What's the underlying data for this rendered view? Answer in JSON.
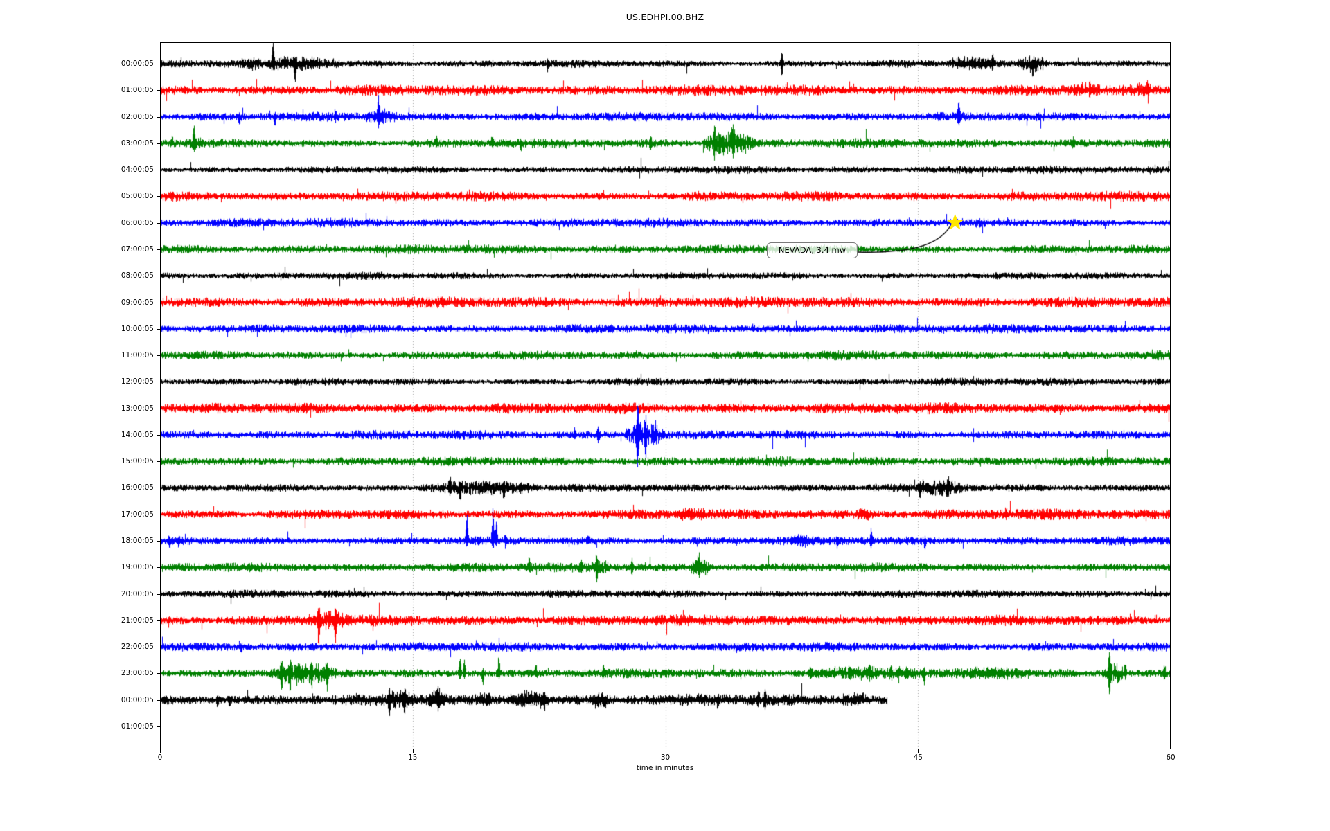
{
  "chart_data": {
    "type": "line",
    "subtype": "helicorder-seismogram",
    "title": "US.EDHPI.00.BHZ",
    "xlabel": "time in minutes",
    "xlim": [
      0,
      60
    ],
    "x_ticks": [
      0,
      15,
      30,
      45,
      60
    ],
    "grid_x_minutes": [
      15,
      30,
      45
    ],
    "grid_on": true,
    "palette": {
      "black": "#000000",
      "red": "#ff0000",
      "blue": "#0000ff",
      "green": "#008000",
      "grid": "#8a8a8a",
      "star": "#ffe600",
      "background": "#ffffff"
    },
    "color_cycle": [
      "black",
      "red",
      "blue",
      "green"
    ],
    "annotation": {
      "text": "NEVADA, 3.4 mw",
      "star_row_label": "06:00:05",
      "star_minute": 47.2,
      "box_row_label": "07:00:05",
      "box_minute_left": 36.1
    },
    "rows": [
      {
        "label": "00:00:05",
        "color": "black",
        "amp": 3.4,
        "end": 60,
        "events": [
          {
            "b": 1,
            "m": 4.7,
            "w": 1.2,
            "u": 5,
            "d": 5
          },
          {
            "m": 6.7,
            "u": 30,
            "d": 6
          },
          {
            "b": 1,
            "m": 6.2,
            "w": 4.6,
            "u": 7,
            "d": 7
          },
          {
            "m": 8.0,
            "u": 6,
            "d": 26
          },
          {
            "m": 23.0,
            "u": 4,
            "d": 8
          },
          {
            "m": 36.9,
            "u": 13,
            "d": 16
          },
          {
            "b": 1,
            "m": 46.8,
            "w": 2.8,
            "u": 9,
            "d": 5
          },
          {
            "m": 49.4,
            "u": 12,
            "d": 5
          },
          {
            "b": 1,
            "m": 50.9,
            "w": 1.8,
            "u": 9,
            "d": 10
          },
          {
            "m": 51.8,
            "u": 4,
            "d": 14
          }
        ]
      },
      {
        "label": "01:00:05",
        "color": "red",
        "amp": 4.4,
        "end": 60,
        "events": [
          {
            "b": 1,
            "m": 53.8,
            "w": 2.0,
            "u": 5,
            "d": 2
          },
          {
            "m": 55.2,
            "u": 8,
            "d": 3
          },
          {
            "b": 1,
            "m": 57.4,
            "w": 2.2,
            "u": 6,
            "d": 3
          },
          {
            "m": 58.6,
            "u": 7,
            "d": 3
          }
        ]
      },
      {
        "label": "02:00:05",
        "color": "blue",
        "amp": 3.7,
        "end": 60,
        "events": [
          {
            "m": 4.7,
            "u": 3,
            "d": 10
          },
          {
            "m": 6.8,
            "u": 4,
            "d": 11
          },
          {
            "m": 10.4,
            "u": 7,
            "d": 3
          },
          {
            "b": 1,
            "m": 12.1,
            "w": 2.0,
            "u": 8,
            "d": 6
          },
          {
            "m": 12.95,
            "u": 26,
            "d": 8
          },
          {
            "m": 47.4,
            "u": 19,
            "d": 9
          }
        ]
      },
      {
        "label": "03:00:05",
        "color": "green",
        "amp": 3.7,
        "end": 60,
        "events": [
          {
            "m": 0.7,
            "u": 8,
            "d": 3
          },
          {
            "m": 2.0,
            "u": 24,
            "d": 4
          },
          {
            "b": 1,
            "m": 1.5,
            "w": 1.2,
            "u": 5,
            "d": 8
          },
          {
            "m": 16.4,
            "u": 8,
            "d": 3
          },
          {
            "m": 19.7,
            "u": 8,
            "d": 4
          },
          {
            "m": 21.4,
            "u": 3,
            "d": 8
          },
          {
            "m": 29.1,
            "u": 8,
            "d": 8
          },
          {
            "b": 1,
            "m": 32.2,
            "w": 3.2,
            "u": 14,
            "d": 16
          },
          {
            "m": 32.9,
            "u": 20,
            "d": 14
          },
          {
            "m": 34.0,
            "u": 24,
            "d": 16
          },
          {
            "m": 54.2,
            "u": 6,
            "d": 4
          }
        ]
      },
      {
        "label": "04:00:05",
        "color": "black",
        "amp": 3.2,
        "end": 60,
        "events": []
      },
      {
        "label": "05:00:05",
        "color": "red",
        "amp": 4.4,
        "end": 60,
        "events": []
      },
      {
        "label": "06:00:05",
        "color": "blue",
        "amp": 3.7,
        "end": 60,
        "events": []
      },
      {
        "label": "07:00:05",
        "color": "green",
        "amp": 3.7,
        "end": 60,
        "events": []
      },
      {
        "label": "08:00:05",
        "color": "black",
        "amp": 3.2,
        "end": 60,
        "events": []
      },
      {
        "label": "09:00:05",
        "color": "red",
        "amp": 4.4,
        "end": 60,
        "events": []
      },
      {
        "label": "10:00:05",
        "color": "blue",
        "amp": 3.7,
        "end": 60,
        "events": []
      },
      {
        "label": "11:00:05",
        "color": "green",
        "amp": 3.7,
        "end": 60,
        "events": []
      },
      {
        "label": "12:00:05",
        "color": "black",
        "amp": 3.2,
        "end": 60,
        "events": []
      },
      {
        "label": "13:00:05",
        "color": "red",
        "amp": 4.4,
        "end": 60,
        "events": []
      },
      {
        "label": "14:00:05",
        "color": "blue",
        "amp": 3.7,
        "end": 60,
        "events": [
          {
            "m": 24.6,
            "u": 7,
            "d": 4
          },
          {
            "m": 26.0,
            "u": 10,
            "d": 12
          },
          {
            "b": 1,
            "m": 27.5,
            "w": 2.4,
            "u": 16,
            "d": 13
          },
          {
            "m": 28.35,
            "u": 42,
            "d": 40
          },
          {
            "m": 28.8,
            "u": 15,
            "d": 22
          },
          {
            "m": 29.4,
            "u": 13,
            "d": 7
          }
        ]
      },
      {
        "label": "15:00:05",
        "color": "green",
        "amp": 3.7,
        "end": 60,
        "events": []
      },
      {
        "label": "16:00:05",
        "color": "black",
        "amp": 3.3,
        "end": 60,
        "events": [
          {
            "b": 1,
            "m": 15.3,
            "w": 7.2,
            "u": 8,
            "d": 8
          },
          {
            "m": 17.2,
            "u": 10,
            "d": 6
          },
          {
            "m": 17.8,
            "u": 5,
            "d": 12
          },
          {
            "m": 20.4,
            "u": 4,
            "d": 12
          },
          {
            "b": 1,
            "m": 44.9,
            "w": 2.8,
            "u": 8,
            "d": 9
          },
          {
            "m": 45.1,
            "u": 4,
            "d": 14
          },
          {
            "m": 46.8,
            "u": 11,
            "d": 5
          }
        ]
      },
      {
        "label": "17:00:05",
        "color": "red",
        "amp": 4.4,
        "end": 60,
        "events": [
          {
            "b": 1,
            "m": 30.6,
            "w": 1.8,
            "u": 5,
            "d": 4
          },
          {
            "b": 1,
            "m": 41.2,
            "w": 1.4,
            "u": 6,
            "d": 4
          },
          {
            "m": 50.2,
            "u": 5,
            "d": 4
          }
        ]
      },
      {
        "label": "18:00:05",
        "color": "blue",
        "amp": 3.7,
        "end": 60,
        "events": [
          {
            "m": 0.55,
            "u": 3,
            "d": 9
          },
          {
            "m": 1.1,
            "u": 3,
            "d": 7
          },
          {
            "m": 18.2,
            "u": 40,
            "d": 4
          },
          {
            "m": 19.75,
            "u": 48,
            "d": 5
          },
          {
            "m": 19.95,
            "u": 28,
            "d": 4
          },
          {
            "m": 20.5,
            "u": 7,
            "d": 4
          },
          {
            "m": 25.4,
            "u": 7,
            "d": 3
          },
          {
            "b": 1,
            "m": 37.3,
            "w": 1.4,
            "u": 5,
            "d": 5
          },
          {
            "m": 40.2,
            "u": 3,
            "d": 8
          },
          {
            "m": 42.2,
            "u": 16,
            "d": 8
          },
          {
            "m": 45.4,
            "u": 3,
            "d": 9
          }
        ]
      },
      {
        "label": "19:00:05",
        "color": "green",
        "amp": 3.7,
        "end": 60,
        "events": [
          {
            "m": 21.9,
            "u": 12,
            "d": 4
          },
          {
            "m": 25.0,
            "u": 6,
            "d": 4
          },
          {
            "b": 1,
            "m": 25.5,
            "w": 1.2,
            "u": 6,
            "d": 6
          },
          {
            "m": 25.9,
            "u": 14,
            "d": 16
          },
          {
            "m": 28.0,
            "u": 12,
            "d": 10
          },
          {
            "b": 1,
            "m": 31.5,
            "w": 1.2,
            "u": 11,
            "d": 11
          },
          {
            "m": 32.0,
            "u": 14,
            "d": 10
          }
        ]
      },
      {
        "label": "20:00:05",
        "color": "black",
        "amp": 3.4,
        "end": 60,
        "events": []
      },
      {
        "label": "21:00:05",
        "color": "red",
        "amp": 4.4,
        "end": 60,
        "events": [
          {
            "b": 1,
            "m": 8.7,
            "w": 2.4,
            "u": 9,
            "d": 8
          },
          {
            "m": 9.4,
            "u": 12,
            "d": 34
          },
          {
            "m": 10.4,
            "u": 10,
            "d": 30
          }
        ]
      },
      {
        "label": "22:00:05",
        "color": "blue",
        "amp": 3.7,
        "end": 60,
        "events": [
          {
            "m": 4.8,
            "u": 3,
            "d": 7
          }
        ]
      },
      {
        "label": "23:00:05",
        "color": "green",
        "amp": 3.7,
        "end": 60,
        "events": [
          {
            "b": 1,
            "m": 6.5,
            "w": 4.0,
            "u": 11,
            "d": 13
          },
          {
            "m": 7.2,
            "u": 14,
            "d": 20
          },
          {
            "m": 7.7,
            "u": 12,
            "d": 24
          },
          {
            "m": 9.0,
            "u": 10,
            "d": 10
          },
          {
            "m": 9.9,
            "u": 8,
            "d": 16
          },
          {
            "m": 17.8,
            "u": 22,
            "d": 6
          },
          {
            "m": 18.05,
            "u": 18,
            "d": 6
          },
          {
            "m": 19.15,
            "u": 4,
            "d": 18
          },
          {
            "m": 20.1,
            "u": 24,
            "d": 5
          },
          {
            "m": 22.3,
            "u": 10,
            "d": 4
          },
          {
            "m": 26.3,
            "u": 8,
            "d": 4
          },
          {
            "b": 1,
            "m": 38.3,
            "w": 7.2,
            "u": 7,
            "d": 6
          },
          {
            "m": 38.6,
            "u": 9,
            "d": 4
          },
          {
            "m": 40.9,
            "u": 8,
            "d": 4
          },
          {
            "m": 42.1,
            "u": 8,
            "d": 4
          },
          {
            "m": 43.4,
            "u": 7,
            "d": 4
          },
          {
            "m": 45.35,
            "u": 4,
            "d": 14
          },
          {
            "b": 1,
            "m": 47.0,
            "w": 5.0,
            "u": 5,
            "d": 4
          },
          {
            "b": 1,
            "m": 55.9,
            "w": 1.4,
            "u": 12,
            "d": 14
          },
          {
            "m": 56.35,
            "u": 34,
            "d": 30
          },
          {
            "m": 57.3,
            "u": 12,
            "d": 5
          },
          {
            "m": 59.6,
            "u": 9,
            "d": 6
          }
        ]
      },
      {
        "label": "00:00:05",
        "color": "black",
        "amp": 4.6,
        "end": 43.2,
        "events": [
          {
            "m": 3.4,
            "u": 4,
            "d": 9
          },
          {
            "m": 4.1,
            "u": 5,
            "d": 8
          },
          {
            "b": 1,
            "m": 13.2,
            "w": 2.0,
            "u": 8,
            "d": 8
          },
          {
            "m": 13.6,
            "u": 6,
            "d": 20
          },
          {
            "m": 14.5,
            "u": 6,
            "d": 16
          },
          {
            "b": 1,
            "m": 15.8,
            "w": 1.2,
            "u": 10,
            "d": 6
          },
          {
            "m": 16.5,
            "u": 12,
            "d": 6
          },
          {
            "b": 1,
            "m": 18.8,
            "w": 1.0,
            "u": 8,
            "d": 5
          },
          {
            "b": 1,
            "m": 20.7,
            "w": 2.4,
            "u": 10,
            "d": 8
          },
          {
            "m": 22.8,
            "u": 5,
            "d": 12
          },
          {
            "b": 1,
            "m": 25.6,
            "w": 1.0,
            "u": 8,
            "d": 8
          },
          {
            "m": 33.1,
            "u": 4,
            "d": 10
          },
          {
            "m": 35.5,
            "u": 12,
            "d": 5
          },
          {
            "m": 35.9,
            "u": 10,
            "d": 12
          },
          {
            "b": 1,
            "m": 40.3,
            "w": 1.8,
            "u": 8,
            "d": 6
          }
        ]
      },
      {
        "label": "01:00:05",
        "color": "black",
        "amp": 0,
        "end": 0,
        "events": []
      }
    ]
  }
}
